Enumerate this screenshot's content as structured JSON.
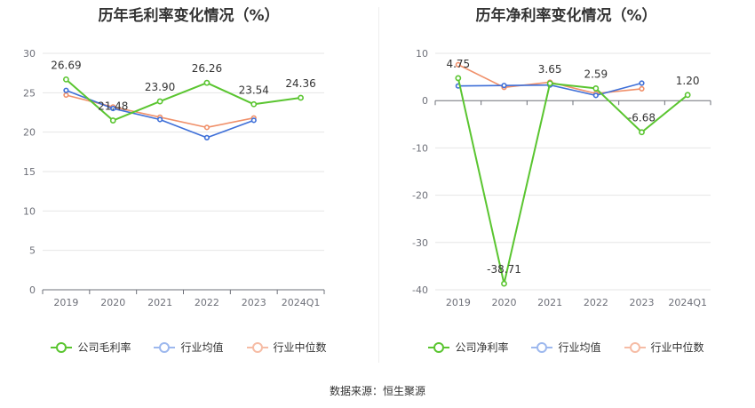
{
  "source_text": "数据来源：恒生聚源",
  "colors": {
    "company": "#5ac530",
    "industry_avg": "#3e6fd8",
    "industry_median": "#f0906a"
  },
  "chart_data": [
    {
      "type": "line",
      "title": "历年毛利率变化情况（%）",
      "categories": [
        "2019",
        "2020",
        "2021",
        "2022",
        "2023",
        "2024Q1"
      ],
      "ylim": [
        0,
        30
      ],
      "yticks": [
        0,
        5,
        10,
        15,
        20,
        25,
        30
      ],
      "grid": true,
      "legend_position": "bottom",
      "series": [
        {
          "name": "公司毛利率",
          "color_key": "company",
          "values": [
            26.69,
            21.48,
            23.9,
            26.26,
            23.54,
            24.36
          ],
          "labels": [
            "26.69",
            "21.48",
            "23.90",
            "26.26",
            "23.54",
            "24.36"
          ]
        },
        {
          "name": "行业均值",
          "color_key": "industry_avg",
          "values": [
            25.3,
            23.0,
            21.6,
            19.3,
            21.5,
            null
          ]
        },
        {
          "name": "行业中位数",
          "color_key": "industry_median",
          "values": [
            24.7,
            23.2,
            21.9,
            20.6,
            21.8,
            null
          ]
        }
      ]
    },
    {
      "type": "line",
      "title": "历年净利率变化情况（%）",
      "categories": [
        "2019",
        "2020",
        "2021",
        "2022",
        "2023",
        "2024Q1"
      ],
      "ylim": [
        -40,
        10
      ],
      "yticks": [
        -40,
        -30,
        -20,
        -10,
        0,
        10
      ],
      "grid": true,
      "legend_position": "bottom",
      "series": [
        {
          "name": "公司净利率",
          "color_key": "company",
          "values": [
            4.75,
            -38.71,
            3.65,
            2.59,
            -6.68,
            1.2
          ],
          "labels": [
            "4.75",
            "-38.71",
            "3.65",
            "2.59",
            "-6.68",
            "1.20"
          ]
        },
        {
          "name": "行业均值",
          "color_key": "industry_avg",
          "values": [
            3.1,
            3.2,
            3.3,
            1.1,
            3.7,
            null
          ]
        },
        {
          "name": "行业中位数",
          "color_key": "industry_median",
          "values": [
            7.6,
            2.8,
            3.9,
            1.5,
            2.5,
            null
          ]
        }
      ]
    }
  ]
}
